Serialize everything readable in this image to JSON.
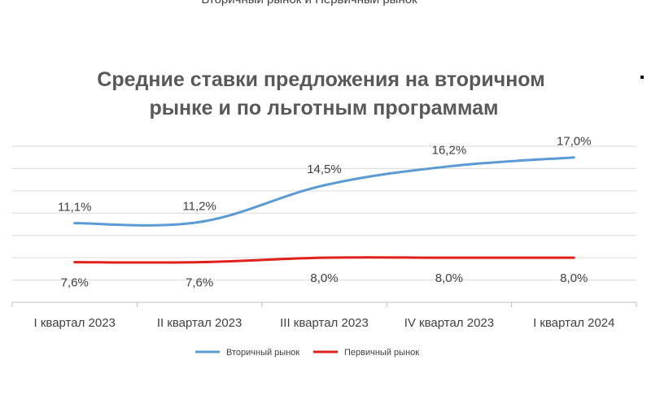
{
  "chart_data": {
    "type": "line",
    "title": "Средние ставки предложения на вторичном рынке и по льготным программам",
    "title_lines": [
      "Средние ставки предложения на вторичном",
      "рынке и по льготным программам"
    ],
    "categories": [
      "I квартал 2023",
      "II квартал 2023",
      "III квартал 2023",
      "IV квартал 2023",
      "I квартал 2024"
    ],
    "series": [
      {
        "name": "Вторичный рынок",
        "color": "#5b9bd5",
        "values": [
          11.1,
          11.2,
          14.5,
          16.2,
          17.0
        ],
        "labels": [
          "11,1%",
          "11,2%",
          "14,5%",
          "16,2%",
          "17,0%"
        ],
        "label_position": "above"
      },
      {
        "name": "Первичный рынок",
        "color": "#e0201b",
        "values": [
          7.6,
          7.6,
          8.0,
          8.0,
          8.0
        ],
        "labels": [
          "7,6%",
          "7,6%",
          "8,0%",
          "8,0%",
          "8,0%"
        ],
        "label_position": "below"
      }
    ],
    "ylim": [
      4,
      18
    ],
    "grid": true,
    "legend_position": "bottom",
    "smooth": true
  },
  "fragments": {
    "bullet": "▪",
    "cut_text": "Вторичный рынок и Первичный рынок"
  }
}
